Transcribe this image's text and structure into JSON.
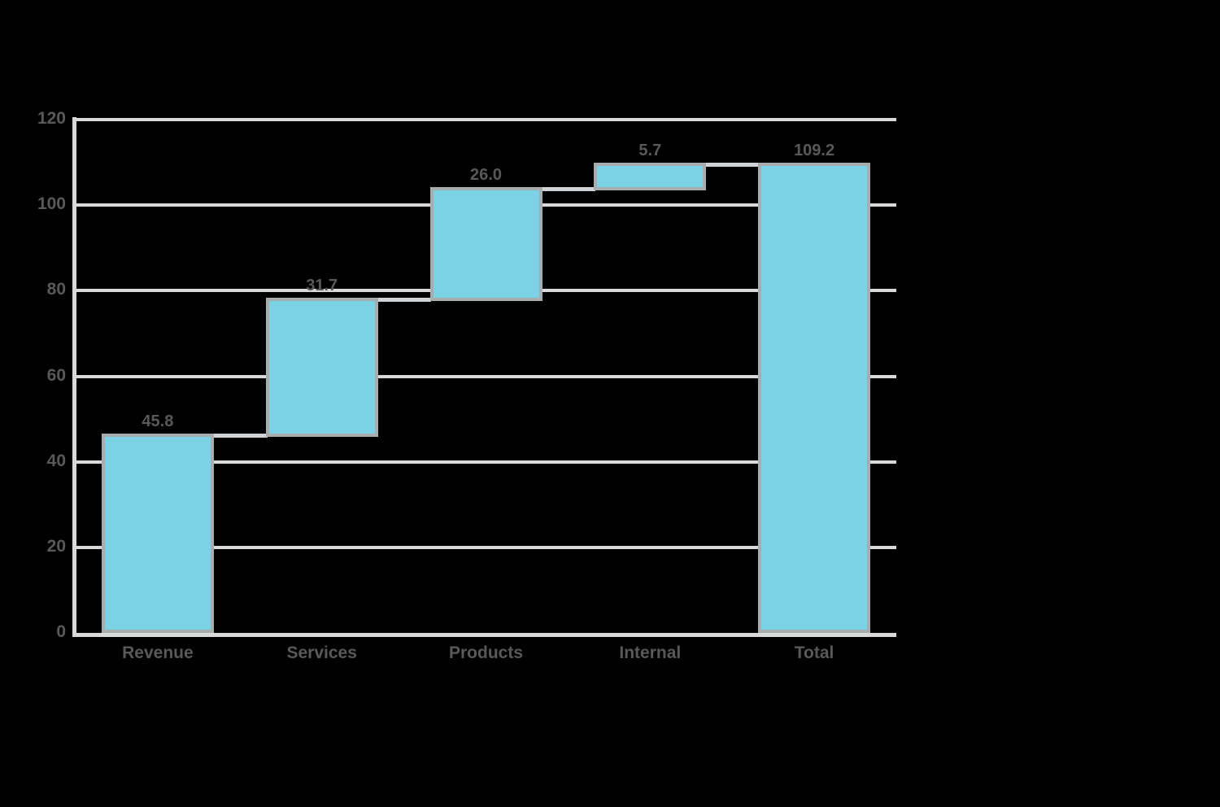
{
  "chart_data": {
    "type": "bar",
    "subtype": "waterfall",
    "title": "",
    "xlabel": "",
    "ylabel": "",
    "categories": [
      "Revenue",
      "Services",
      "Products",
      "Internal",
      "Total"
    ],
    "bars": [
      {
        "category": "Revenue",
        "start": 0,
        "end": 45.8,
        "value_label": "45.8",
        "kind": "increase"
      },
      {
        "category": "Services",
        "start": 45.8,
        "end": 77.5,
        "value_label": "31.7",
        "kind": "increase"
      },
      {
        "category": "Products",
        "start": 77.5,
        "end": 103.5,
        "value_label": "26.0",
        "kind": "increase"
      },
      {
        "category": "Internal",
        "start": 103.5,
        "end": 109.2,
        "value_label": "5.7",
        "kind": "increase"
      },
      {
        "category": "Total",
        "start": 0,
        "end": 109.2,
        "value_label": "109.2",
        "kind": "total"
      }
    ],
    "yticks": [
      "0",
      "20",
      "40",
      "60",
      "80",
      "100",
      "120"
    ],
    "ytick_values": [
      0,
      20,
      40,
      60,
      80,
      100,
      120
    ],
    "ylim": [
      0,
      120
    ],
    "grid": true,
    "legend": false,
    "connectors": true,
    "colors": {
      "bar_fill": "#7BD2E5",
      "bar_border": "#A7ACAE",
      "gridline": "#D9D9D9",
      "connector": "#CFD3D5",
      "axis_line": "#D9D9D9",
      "text": "#595959",
      "background": "#000000"
    }
  }
}
